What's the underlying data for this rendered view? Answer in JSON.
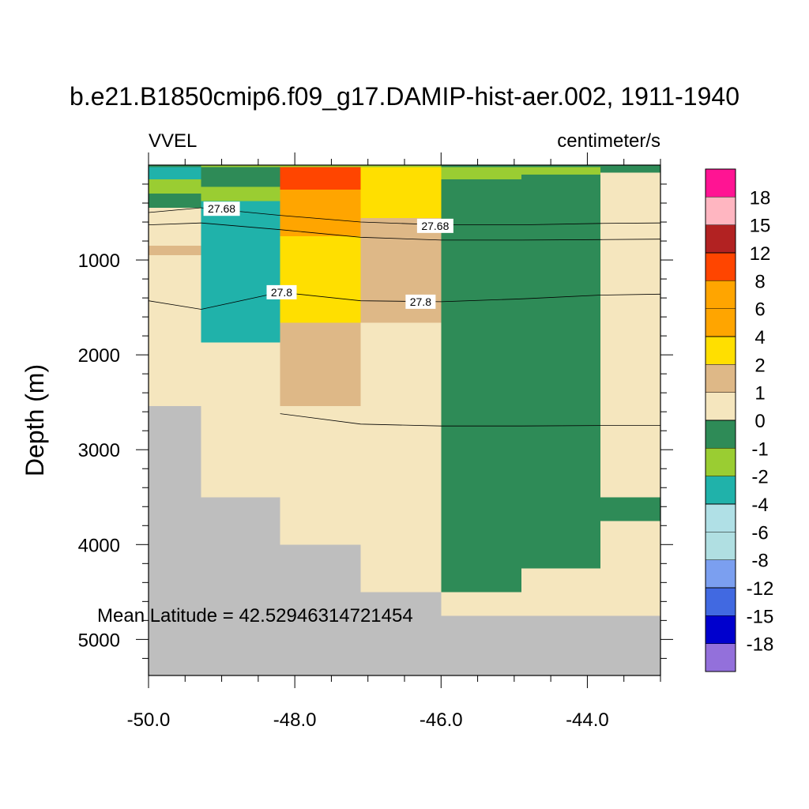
{
  "chart_data": {
    "type": "heatmap",
    "title": "b.e21.B1850cmip6.f09_g17.DAMIP-hist-aer.002, 1911-1940",
    "variable_label": "VVEL",
    "units_label": "centimeter/s",
    "ylabel": "Depth (m)",
    "xlabel": "",
    "annotation": "Mean Latitude = 42.52946314721454",
    "xlim": [
      -50.0,
      -43.0
    ],
    "ylim": [
      0,
      5380
    ],
    "y_reversed": true,
    "x_ticks": [
      -50.0,
      -48.0,
      -46.0,
      -44.0
    ],
    "x_tick_labels": [
      "-50.0",
      "-48.0",
      "-46.0",
      "-44.0"
    ],
    "x_minor_ticks": [
      -49.5,
      -49.0,
      -48.5,
      -47.5,
      -47.0,
      -46.5,
      -45.5,
      -45.0,
      -44.5,
      -43.5,
      -43.0
    ],
    "y_ticks": [
      1000,
      2000,
      3000,
      4000,
      5000
    ],
    "y_tick_labels": [
      "1000",
      "2000",
      "3000",
      "4000",
      "5000"
    ],
    "y_minor_ticks": [
      200,
      400,
      600,
      800,
      1200,
      1400,
      1600,
      1800,
      2200,
      2400,
      2600,
      2800,
      3200,
      3400,
      3600,
      3800,
      4200,
      4400,
      4600,
      4800,
      5200
    ],
    "levels": [
      -18,
      -15,
      -12,
      -8,
      -6,
      -4,
      -2,
      -1,
      0,
      1,
      2,
      4,
      6,
      8,
      12,
      15,
      18
    ],
    "colorbar_labels": [
      "18",
      "15",
      "12",
      "8",
      "6",
      "4",
      "2",
      "1",
      "0",
      "-1",
      "-2",
      "-4",
      "-6",
      "-8",
      "-12",
      "-15",
      "-18"
    ],
    "colorbar_colors": [
      "#ff1493",
      "#ffb6c1",
      "#b22222",
      "#ff4500",
      "#ffa500",
      "#ffa500",
      "#ffdf00",
      "#deb887",
      "#f5e6be",
      "#2e8b57",
      "#9acd32",
      "#20b2aa",
      "#b0e0e6",
      "#b0dfe2",
      "#7b9ff0",
      "#4169e1",
      "#0000cd",
      "#9370db"
    ],
    "missing_color": "#bebebe",
    "columns": [
      {
        "x0": -50.0,
        "x1": -49.28,
        "cells": [
          {
            "d0": 0,
            "d1": 20,
            "color": "#2e8b57"
          },
          {
            "d0": 20,
            "d1": 150,
            "color": "#20b2aa"
          },
          {
            "d0": 150,
            "d1": 300,
            "color": "#9acd32"
          },
          {
            "d0": 300,
            "d1": 450,
            "color": "#2e8b57"
          },
          {
            "d0": 450,
            "d1": 850,
            "color": "#f5e6be"
          },
          {
            "d0": 850,
            "d1": 950,
            "color": "#deb887"
          },
          {
            "d0": 950,
            "d1": 2540,
            "color": "#f5e6be"
          },
          {
            "d0": 2540,
            "d1": 5380,
            "color": "#bebebe"
          }
        ]
      },
      {
        "x0": -49.28,
        "x1": -48.2,
        "cells": [
          {
            "d0": 0,
            "d1": 20,
            "color": "#9acd32"
          },
          {
            "d0": 20,
            "d1": 230,
            "color": "#2e8b57"
          },
          {
            "d0": 230,
            "d1": 380,
            "color": "#9acd32"
          },
          {
            "d0": 380,
            "d1": 1870,
            "color": "#20b2aa"
          },
          {
            "d0": 1870,
            "d1": 3500,
            "color": "#f5e6be"
          },
          {
            "d0": 3500,
            "d1": 5380,
            "color": "#bebebe"
          }
        ]
      },
      {
        "x0": -48.2,
        "x1": -47.1,
        "cells": [
          {
            "d0": 0,
            "d1": 20,
            "color": "#9acd32"
          },
          {
            "d0": 20,
            "d1": 260,
            "color": "#ff4500"
          },
          {
            "d0": 260,
            "d1": 750,
            "color": "#ffa500"
          },
          {
            "d0": 750,
            "d1": 1660,
            "color": "#ffdf00"
          },
          {
            "d0": 1660,
            "d1": 2540,
            "color": "#deb887"
          },
          {
            "d0": 2540,
            "d1": 4000,
            "color": "#f5e6be"
          },
          {
            "d0": 4000,
            "d1": 5380,
            "color": "#bebebe"
          }
        ]
      },
      {
        "x0": -47.1,
        "x1": -46.0,
        "cells": [
          {
            "d0": 0,
            "d1": 20,
            "color": "#9acd32"
          },
          {
            "d0": 20,
            "d1": 560,
            "color": "#ffdf00"
          },
          {
            "d0": 560,
            "d1": 1660,
            "color": "#deb887"
          },
          {
            "d0": 1660,
            "d1": 4500,
            "color": "#f5e6be"
          },
          {
            "d0": 4500,
            "d1": 5380,
            "color": "#bebebe"
          }
        ]
      },
      {
        "x0": -46.0,
        "x1": -44.9,
        "cells": [
          {
            "d0": 0,
            "d1": 20,
            "color": "#2e8b57"
          },
          {
            "d0": 20,
            "d1": 150,
            "color": "#9acd32"
          },
          {
            "d0": 150,
            "d1": 4500,
            "color": "#2e8b57"
          },
          {
            "d0": 4500,
            "d1": 4750,
            "color": "#f5e6be"
          },
          {
            "d0": 4750,
            "d1": 5380,
            "color": "#bebebe"
          }
        ]
      },
      {
        "x0": -44.9,
        "x1": -43.82,
        "cells": [
          {
            "d0": 0,
            "d1": 20,
            "color": "#2e8b57"
          },
          {
            "d0": 20,
            "d1": 100,
            "color": "#9acd32"
          },
          {
            "d0": 100,
            "d1": 4250,
            "color": "#2e8b57"
          },
          {
            "d0": 4250,
            "d1": 4750,
            "color": "#f5e6be"
          },
          {
            "d0": 4750,
            "d1": 5380,
            "color": "#bebebe"
          }
        ]
      },
      {
        "x0": -43.82,
        "x1": -43.0,
        "cells": [
          {
            "d0": 0,
            "d1": 80,
            "color": "#2e8b57"
          },
          {
            "d0": 80,
            "d1": 3500,
            "color": "#f5e6be"
          },
          {
            "d0": 3500,
            "d1": 3750,
            "color": "#2e8b57"
          },
          {
            "d0": 3750,
            "d1": 4750,
            "color": "#f5e6be"
          },
          {
            "d0": 4750,
            "d1": 5380,
            "color": "#bebebe"
          }
        ]
      }
    ],
    "contours": [
      {
        "points": [
          [
            -50.0,
            500
          ],
          [
            -49.28,
            450
          ],
          [
            -48.2,
            530
          ],
          [
            -47.1,
            600
          ],
          [
            -46.0,
            630
          ],
          [
            -44.9,
            630
          ],
          [
            -43.82,
            615
          ],
          [
            -43.0,
            610
          ]
        ]
      },
      {
        "points": [
          [
            -50.0,
            630
          ],
          [
            -49.28,
            610
          ],
          [
            -48.2,
            680
          ],
          [
            -47.1,
            760
          ],
          [
            -46.0,
            790
          ],
          [
            -44.9,
            790
          ],
          [
            -43.82,
            785
          ],
          [
            -43.0,
            780
          ]
        ]
      },
      {
        "points": [
          [
            -50.0,
            1430
          ],
          [
            -49.28,
            1520
          ],
          [
            -48.2,
            1340
          ],
          [
            -47.1,
            1430
          ],
          [
            -46.0,
            1440
          ],
          [
            -44.9,
            1410
          ],
          [
            -43.82,
            1370
          ],
          [
            -43.0,
            1360
          ]
        ]
      },
      {
        "points": [
          [
            -48.2,
            2620
          ],
          [
            -47.1,
            2730
          ],
          [
            -46.0,
            2750
          ],
          [
            -44.9,
            2750
          ],
          [
            -43.82,
            2745
          ],
          [
            -43.0,
            2745
          ]
        ]
      }
    ],
    "contour_labels": [
      {
        "text": "27.68",
        "x": -49.0,
        "d": 460
      },
      {
        "text": "27.68",
        "x": -46.08,
        "d": 640
      },
      {
        "text": "27.8",
        "x": -48.18,
        "d": 1340
      },
      {
        "text": "27.8",
        "x": -46.28,
        "d": 1440
      }
    ]
  }
}
